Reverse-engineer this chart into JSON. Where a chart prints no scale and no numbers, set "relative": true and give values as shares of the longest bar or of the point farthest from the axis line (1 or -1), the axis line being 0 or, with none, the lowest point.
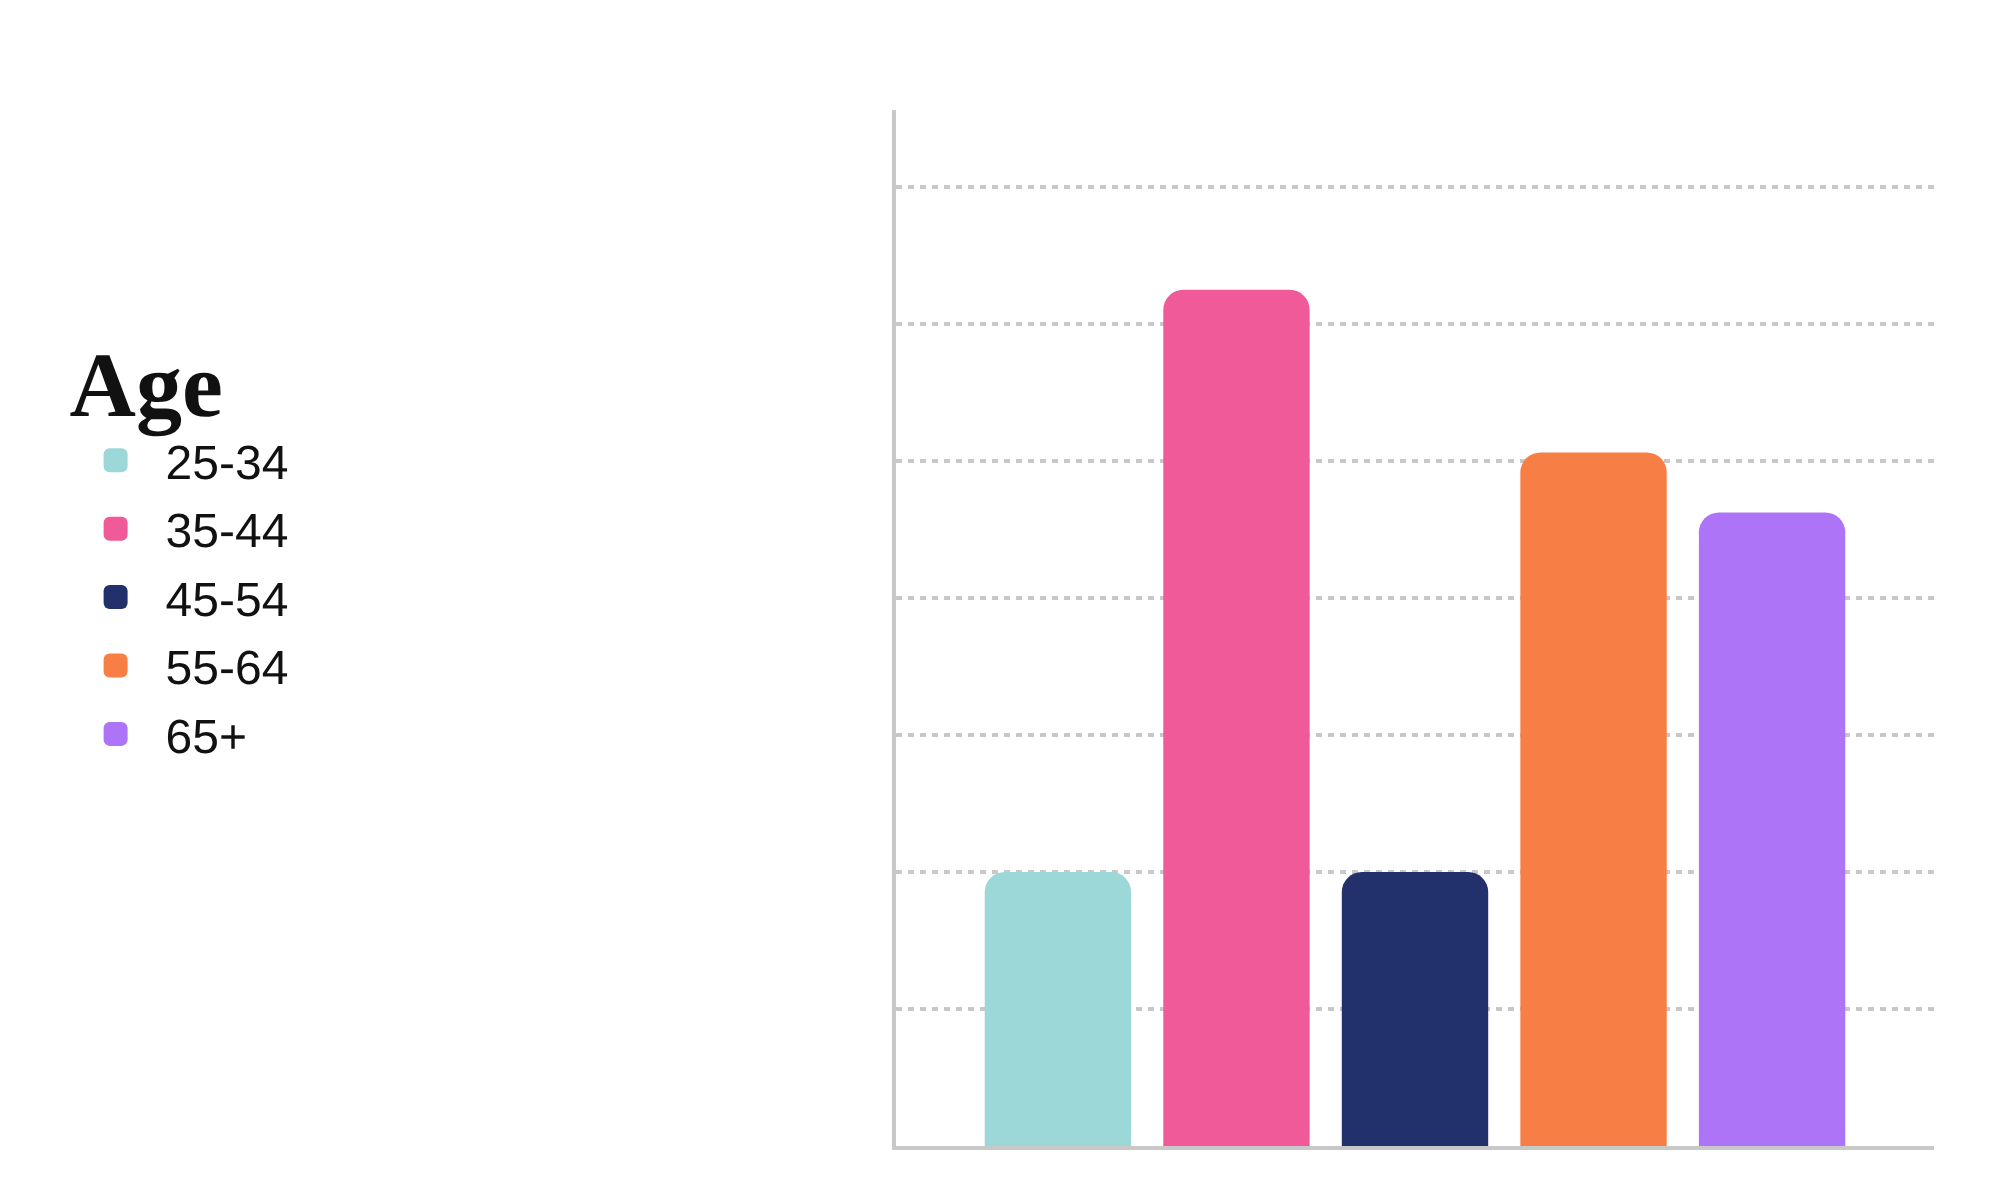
{
  "chart_data": {
    "type": "bar",
    "legend_title": "Age",
    "relative": true,
    "categories": [
      null
    ],
    "series": [
      {
        "name": "25-34",
        "color": "#9bd8d7",
        "values": [
          0.32
        ]
      },
      {
        "name": "35-44",
        "color": "#f05a99",
        "values": [
          1
        ]
      },
      {
        "name": "45-54",
        "color": "#22306b",
        "values": [
          0.32
        ]
      },
      {
        "name": "55-64",
        "color": "#f77f45",
        "values": [
          0.81
        ]
      },
      {
        "name": "65+",
        "color": "#ae74f8",
        "values": [
          0.74
        ]
      }
    ],
    "grid": "y",
    "legend": "left",
    "tick_labels": false
  }
}
